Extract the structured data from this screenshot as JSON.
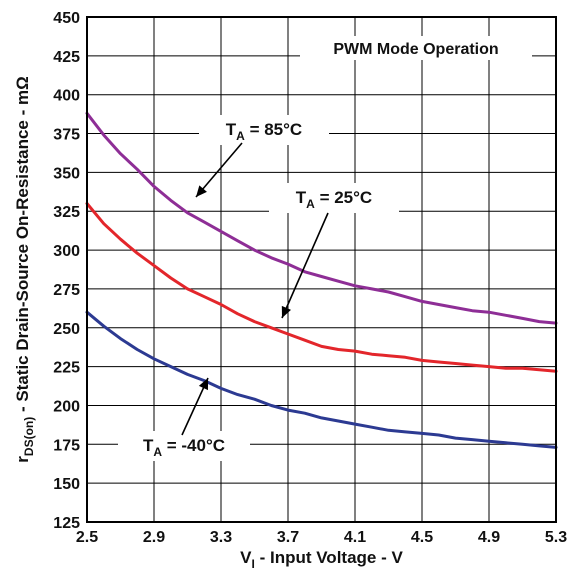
{
  "chart_data": {
    "type": "line",
    "title": "",
    "xlabel_main": "V",
    "xlabel_sub": "I",
    "xlabel_rest": " - Input Voltage - V",
    "ylabel_main": "r",
    "ylabel_sub": "DS(on)",
    "ylabel_rest": " - Static Drain-Source On-Resistance - mΩ",
    "xlim": [
      2.5,
      5.3
    ],
    "ylim": [
      125,
      450
    ],
    "grid": true,
    "x_ticks": [
      "2.5",
      "2.9",
      "3.3",
      "3.7",
      "4.1",
      "4.5",
      "4.9",
      "5.3"
    ],
    "y_ticks": [
      "125",
      "150",
      "175",
      "200",
      "225",
      "250",
      "275",
      "300",
      "325",
      "350",
      "375",
      "400",
      "425",
      "450"
    ],
    "annotation_box": "PWM Mode Operation",
    "series": [
      {
        "name_main": "T",
        "name_sub": "A",
        "name_rest": " = 85°C",
        "color": "#8e2e96",
        "x": [
          2.5,
          2.6,
          2.7,
          2.8,
          2.9,
          3.0,
          3.1,
          3.2,
          3.3,
          3.4,
          3.5,
          3.6,
          3.7,
          3.8,
          3.9,
          4.0,
          4.1,
          4.2,
          4.3,
          4.4,
          4.5,
          4.6,
          4.7,
          4.8,
          4.9,
          5.0,
          5.1,
          5.2,
          5.3
        ],
        "values": [
          388,
          374,
          362,
          352,
          341,
          332,
          324,
          318,
          312,
          306,
          300,
          295,
          291,
          286,
          283,
          280,
          277,
          275,
          273,
          270,
          267,
          265,
          263,
          261,
          260,
          258,
          256,
          254,
          253
        ]
      },
      {
        "name_main": "T",
        "name_sub": "A",
        "name_rest": " = 25°C",
        "color": "#e3262b",
        "x": [
          2.5,
          2.6,
          2.7,
          2.8,
          2.9,
          3.0,
          3.1,
          3.2,
          3.3,
          3.4,
          3.5,
          3.6,
          3.7,
          3.8,
          3.9,
          4.0,
          4.1,
          4.2,
          4.3,
          4.4,
          4.5,
          4.6,
          4.7,
          4.8,
          4.9,
          5.0,
          5.1,
          5.2,
          5.3
        ],
        "values": [
          330,
          317,
          307,
          298,
          290,
          282,
          275,
          270,
          265,
          259,
          254,
          250,
          246,
          242,
          238,
          236,
          235,
          233,
          232,
          231,
          229,
          228,
          227,
          226,
          225,
          224,
          224,
          223,
          222
        ]
      },
      {
        "name_main": "T",
        "name_sub": "A",
        "name_rest": " = -40°C",
        "color": "#2c3a92",
        "x": [
          2.5,
          2.6,
          2.7,
          2.8,
          2.9,
          3.0,
          3.1,
          3.2,
          3.3,
          3.4,
          3.5,
          3.6,
          3.7,
          3.8,
          3.9,
          4.0,
          4.1,
          4.2,
          4.3,
          4.4,
          4.5,
          4.6,
          4.7,
          4.8,
          4.9,
          5.0,
          5.1,
          5.2,
          5.3
        ],
        "values": [
          260,
          251,
          243,
          236,
          230,
          225,
          220,
          216,
          211,
          207,
          204,
          200,
          197,
          195,
          192,
          190,
          188,
          186,
          184,
          183,
          182,
          181,
          179,
          178,
          177,
          176,
          175,
          174,
          173
        ]
      }
    ]
  }
}
